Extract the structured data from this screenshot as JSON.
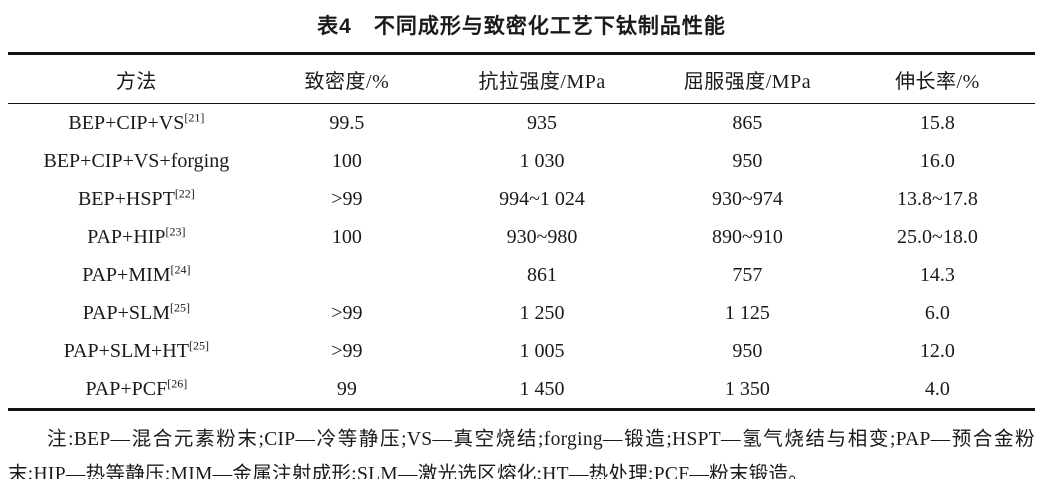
{
  "title": "表4　不同成形与致密化工艺下钛制品性能",
  "table": {
    "headers": [
      "方法",
      "致密度/%",
      "抗拉强度/MPa",
      "屈服强度/MPa",
      "伸长率/%"
    ],
    "rows": [
      {
        "method": "BEP+CIP+VS",
        "ref": "[21]",
        "density": "99.5",
        "tensile": "935",
        "yield": "865",
        "elong": "15.8"
      },
      {
        "method": "BEP+CIP+VS+forging",
        "ref": "",
        "density": "100",
        "tensile": "1 030",
        "yield": "950",
        "elong": "16.0"
      },
      {
        "method": "BEP+HSPT",
        "ref": "[22]",
        "density": ">99",
        "tensile": "994~1 024",
        "yield": "930~974",
        "elong": "13.8~17.8"
      },
      {
        "method": "PAP+HIP",
        "ref": "[23]",
        "density": "100",
        "tensile": "930~980",
        "yield": "890~910",
        "elong": "25.0~18.0"
      },
      {
        "method": "PAP+MIM",
        "ref": "[24]",
        "density": "",
        "tensile": "861",
        "yield": "757",
        "elong": "14.3"
      },
      {
        "method": "PAP+SLM",
        "ref": "[25]",
        "density": ">99",
        "tensile": "1 250",
        "yield": "1 125",
        "elong": "6.0"
      },
      {
        "method": "PAP+SLM+HT",
        "ref": "[25]",
        "density": ">99",
        "tensile": "1 005",
        "yield": "950",
        "elong": "12.0"
      },
      {
        "method": "PAP+PCF",
        "ref": "[26]",
        "density": "99",
        "tensile": "1 450",
        "yield": "1 350",
        "elong": "4.0"
      }
    ]
  },
  "note": "注:BEP—混合元素粉末;CIP—冷等静压;VS—真空烧结;forging—锻造;HSPT—氢气烧结与相变;PAP—预合金粉末;HIP—热等静压;MIM—金属注射成形;SLM—激光选区熔化;HT—热处理;PCF—粉末锻造。"
}
